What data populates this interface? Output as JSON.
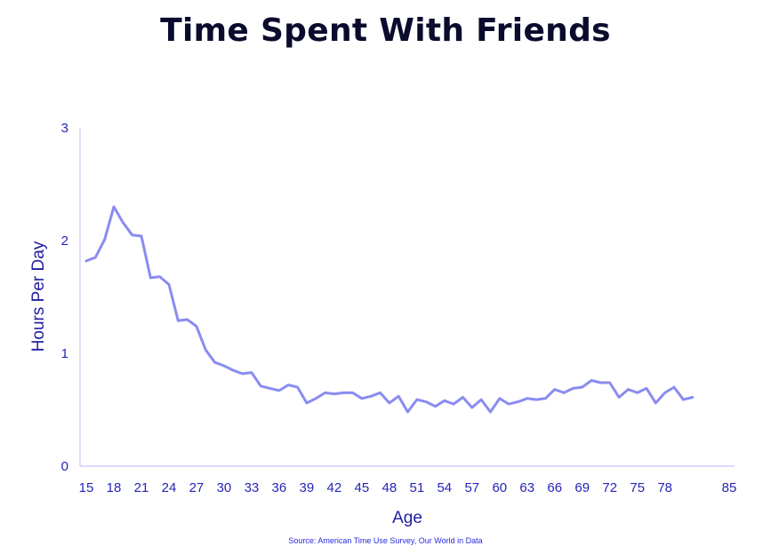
{
  "chart_data": {
    "type": "line",
    "title": "Time Spent With Friends",
    "xlabel": "Age",
    "ylabel": "Hours Per Day",
    "xlim": [
      15,
      85
    ],
    "ylim": [
      0,
      3
    ],
    "x_ticks": [
      15,
      18,
      21,
      24,
      27,
      30,
      33,
      36,
      39,
      42,
      45,
      48,
      51,
      54,
      57,
      60,
      63,
      66,
      69,
      72,
      75,
      78,
      85
    ],
    "y_ticks": [
      0,
      1,
      2,
      3
    ],
    "grid": false,
    "colors": {
      "line": "#8a8cf0",
      "axis": "#c4c6f6",
      "tick_text": "#2424b8",
      "label_text": "#1e1e9e",
      "title": "#0b0b2e",
      "source": "#2a2adf"
    },
    "series": [
      {
        "x": [
          15,
          16,
          17,
          18,
          19,
          20,
          21,
          22,
          23,
          24,
          25,
          26,
          27,
          28,
          29,
          30,
          31,
          32,
          33,
          34,
          35,
          36,
          37,
          38,
          39,
          40,
          41,
          42,
          43,
          44,
          45,
          46,
          47,
          48,
          49,
          50,
          51,
          52,
          53,
          54,
          55,
          56,
          57,
          58,
          59,
          60,
          61,
          62,
          63,
          64,
          65,
          66,
          67,
          68,
          69,
          70,
          71,
          72,
          73,
          74,
          75,
          76,
          77,
          78,
          79,
          80,
          81
        ],
        "values": [
          1.82,
          1.85,
          2.01,
          2.3,
          2.16,
          2.05,
          2.04,
          1.67,
          1.68,
          1.61,
          1.29,
          1.3,
          1.24,
          1.03,
          0.92,
          0.89,
          0.85,
          0.82,
          0.83,
          0.71,
          0.69,
          0.67,
          0.72,
          0.7,
          0.56,
          0.6,
          0.65,
          0.64,
          0.65,
          0.65,
          0.6,
          0.62,
          0.65,
          0.56,
          0.62,
          0.48,
          0.59,
          0.57,
          0.53,
          0.58,
          0.55,
          0.61,
          0.52,
          0.59,
          0.48,
          0.6,
          0.55,
          0.57,
          0.6,
          0.59,
          0.6,
          0.68,
          0.65,
          0.69,
          0.7,
          0.76,
          0.74,
          0.74,
          0.61,
          0.68,
          0.65,
          0.69,
          0.56,
          0.65,
          0.7,
          0.59,
          0.61
        ]
      }
    ],
    "source": "Source: American Time Use Survey, Our World in Data"
  }
}
